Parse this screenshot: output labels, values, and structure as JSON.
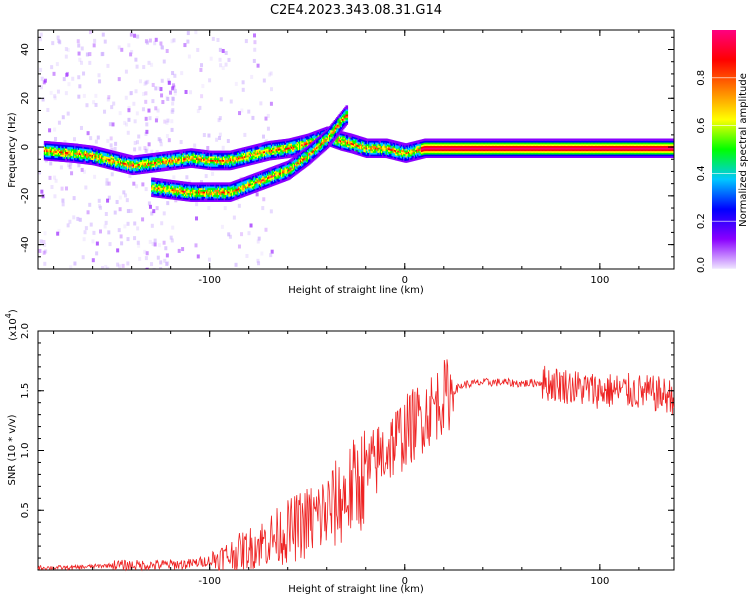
{
  "page_title": "C2E4.2023.343.08.31.G14",
  "chart_data": [
    {
      "type": "heatmap",
      "title": "C2E4.2023.343.08.31.G14",
      "xlabel": "Height of straight line (km)",
      "ylabel": "Frequency (Hz)",
      "xlim": [
        -188,
        138
      ],
      "ylim": [
        -50,
        48
      ],
      "x_ticks": [
        -100,
        0,
        100
      ],
      "x_tick_labels": [
        "-100",
        "0",
        "100"
      ],
      "y_ticks": [
        -40,
        -20,
        0,
        20,
        40
      ],
      "y_tick_labels": [
        "-40",
        "-20",
        "0",
        "20",
        "40"
      ],
      "colorbar": {
        "label": "Normalized spectral amplitude",
        "range": [
          0,
          1
        ],
        "ticks": [
          0.0,
          0.2,
          0.4,
          0.6,
          0.8
        ],
        "tick_labels": [
          "0.0",
          "0.2",
          "0.4",
          "0.6",
          "0.8"
        ],
        "colors": [
          "#f0e8ff",
          "#8a00ff",
          "#0000ff",
          "#00c8ff",
          "#00ff00",
          "#ffff00",
          "#ff8000",
          "#ff0000",
          "#ff0080"
        ]
      },
      "tracks": [
        {
          "name": "",
          "points": [
            [
              -185,
              -1
            ],
            [
              -170,
              -2
            ],
            [
              -160,
              -3
            ],
            [
              -150,
              -5
            ],
            [
              -140,
              -7
            ],
            [
              -130,
              -6
            ],
            [
              -120,
              -5
            ],
            [
              -110,
              -4
            ],
            [
              -100,
              -5
            ],
            [
              -90,
              -5
            ],
            [
              -80,
              -3
            ],
            [
              -70,
              -1
            ],
            [
              -60,
              0
            ],
            [
              -50,
              2
            ],
            [
              -40,
              5
            ],
            [
              -33,
              3
            ],
            [
              -28,
              2
            ],
            [
              -20,
              0
            ],
            [
              -10,
              0
            ],
            [
              0,
              -2
            ],
            [
              10,
              0
            ],
            [
              138,
              0
            ]
          ]
        },
        {
          "name": "",
          "points": [
            [
              -130,
              -16
            ],
            [
              -120,
              -17
            ],
            [
              -110,
              -18
            ],
            [
              -100,
              -18
            ],
            [
              -90,
              -18
            ],
            [
              -80,
              -15
            ],
            [
              -70,
              -12
            ],
            [
              -60,
              -9
            ],
            [
              -50,
              -3
            ],
            [
              -40,
              4
            ],
            [
              -35,
              9
            ],
            [
              -30,
              14
            ]
          ]
        }
      ],
      "grid": false
    },
    {
      "type": "line",
      "title": "",
      "xlabel": "Height of straight line (km)",
      "ylabel": "SNR (10 * v/v)",
      "y_multiplier_label": "(x10",
      "y_multiplier_exp": "4",
      "xlim": [
        -188,
        138
      ],
      "ylim": [
        0,
        2.0
      ],
      "x_ticks": [
        -100,
        0,
        100
      ],
      "x_tick_labels": [
        "-100",
        "0",
        "100"
      ],
      "y_ticks": [
        0.5,
        1.0,
        1.5,
        2.0
      ],
      "y_tick_labels": [
        "0.5",
        "1.0",
        "1.5",
        "2.0"
      ],
      "color": "#ee2222",
      "series": [
        {
          "name": "",
          "x": [
            -188,
            -170,
            -150,
            -130,
            -110,
            -100,
            -90,
            -80,
            -70,
            -60,
            -50,
            -40,
            -30,
            -20,
            -10,
            0,
            10,
            20,
            30,
            40,
            50,
            60,
            70,
            80,
            90,
            100,
            110,
            120,
            130,
            138
          ],
          "values": [
            0.02,
            0.02,
            0.04,
            0.04,
            0.05,
            0.08,
            0.12,
            0.18,
            0.25,
            0.32,
            0.4,
            0.48,
            0.62,
            0.8,
            1.0,
            1.15,
            1.3,
            1.45,
            1.55,
            1.57,
            1.57,
            1.56,
            1.57,
            1.55,
            1.52,
            1.5,
            1.5,
            1.49,
            1.47,
            1.45
          ]
        }
      ]
    }
  ]
}
